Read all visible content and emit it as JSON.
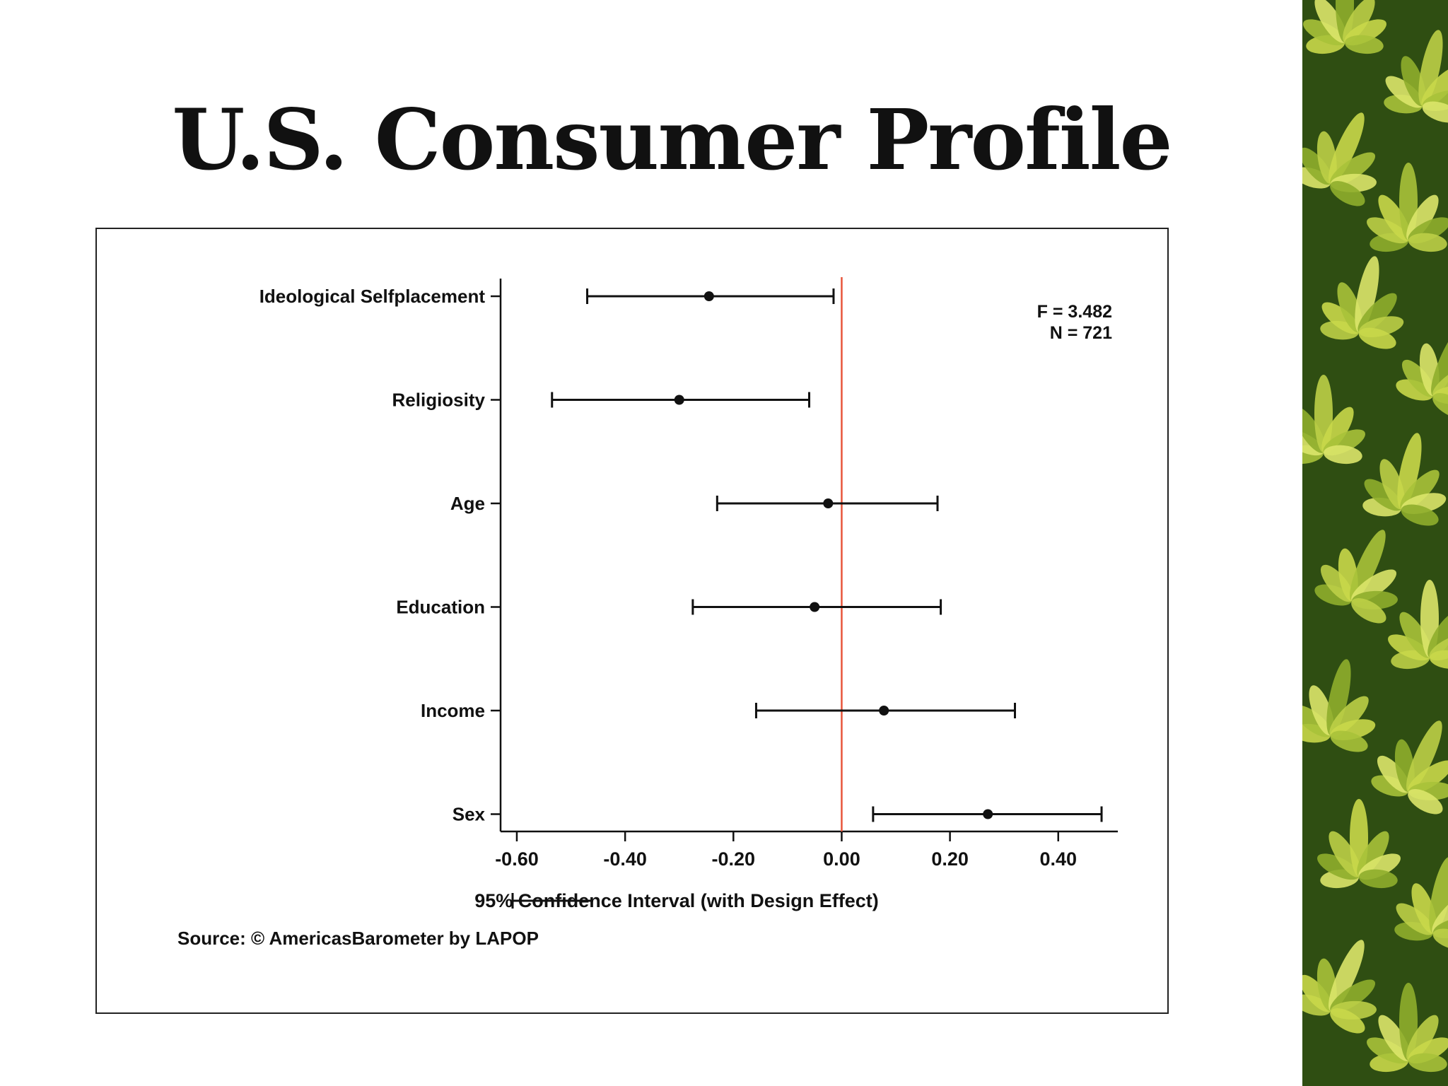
{
  "slide": {
    "title": "U.S. Consumer Profile"
  },
  "chart_data": {
    "type": "scatter",
    "orientation": "horizontal",
    "categories": [
      "Ideological Selfplacement",
      "Religiosity",
      "Age",
      "Education",
      "Income",
      "Sex"
    ],
    "estimates": [
      -0.245,
      -0.3,
      -0.025,
      -0.05,
      0.078,
      0.27
    ],
    "ci_low": [
      -0.47,
      -0.535,
      -0.23,
      -0.275,
      -0.158,
      0.058
    ],
    "ci_high": [
      -0.015,
      -0.06,
      0.177,
      0.183,
      0.32,
      0.48
    ],
    "xlim": [
      -0.63,
      0.51
    ],
    "x_ticks": [
      "-0.60",
      "-0.40",
      "-0.20",
      "0.00",
      "0.20",
      "0.40"
    ],
    "x_tick_values": [
      -0.6,
      -0.4,
      -0.2,
      0.0,
      0.2,
      0.4
    ],
    "reference_line": 0.0,
    "reference_line_color": "#e8553a",
    "stats": [
      "F = 3.482",
      "N = 721"
    ],
    "legend": "95% Confidence Interval (with Design Effect)",
    "legend_placement": "bottom",
    "source": "Source: © AmericasBarometer by LAPOP",
    "grid": false
  },
  "colors": {
    "ink": "#111111",
    "reference": "#e8553a",
    "leaf_dark": "#2f4e12",
    "leaf_light": "#c9d84a"
  }
}
